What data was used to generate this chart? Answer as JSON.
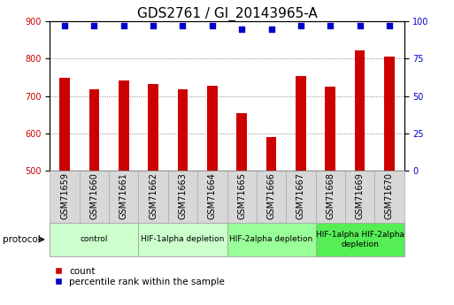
{
  "title": "GDS2761 / GI_20143965-A",
  "samples": [
    "GSM71659",
    "GSM71660",
    "GSM71661",
    "GSM71662",
    "GSM71663",
    "GSM71664",
    "GSM71665",
    "GSM71666",
    "GSM71667",
    "GSM71668",
    "GSM71669",
    "GSM71670"
  ],
  "counts": [
    750,
    718,
    742,
    733,
    718,
    727,
    655,
    590,
    754,
    725,
    822,
    805
  ],
  "percentile_ranks": [
    97,
    97,
    97,
    97,
    97,
    97,
    95,
    95,
    97,
    97,
    97,
    97
  ],
  "bar_color": "#cc0000",
  "dot_color": "#0000cc",
  "ylim_left": [
    500,
    900
  ],
  "ylim_right": [
    0,
    100
  ],
  "yticks_left": [
    500,
    600,
    700,
    800,
    900
  ],
  "yticks_right": [
    0,
    25,
    50,
    75,
    100
  ],
  "protocol_groups": [
    {
      "label": "control",
      "start": 0,
      "end": 3,
      "color": "#ccffcc"
    },
    {
      "label": "HIF-1alpha depletion",
      "start": 3,
      "end": 6,
      "color": "#ccffcc"
    },
    {
      "label": "HIF-2alpha depletion",
      "start": 6,
      "end": 9,
      "color": "#99ff99"
    },
    {
      "label": "HIF-1alpha HIF-2alpha\ndepletion",
      "start": 9,
      "end": 12,
      "color": "#55ee55"
    }
  ],
  "legend_red_label": "count",
  "legend_blue_label": "percentile rank within the sample",
  "protocol_label": "protocol",
  "title_fontsize": 11,
  "tick_label_fontsize": 7,
  "axis_label_fontsize": 8,
  "sample_box_color": "#d8d8d8",
  "sample_box_edge": "#aaaaaa"
}
